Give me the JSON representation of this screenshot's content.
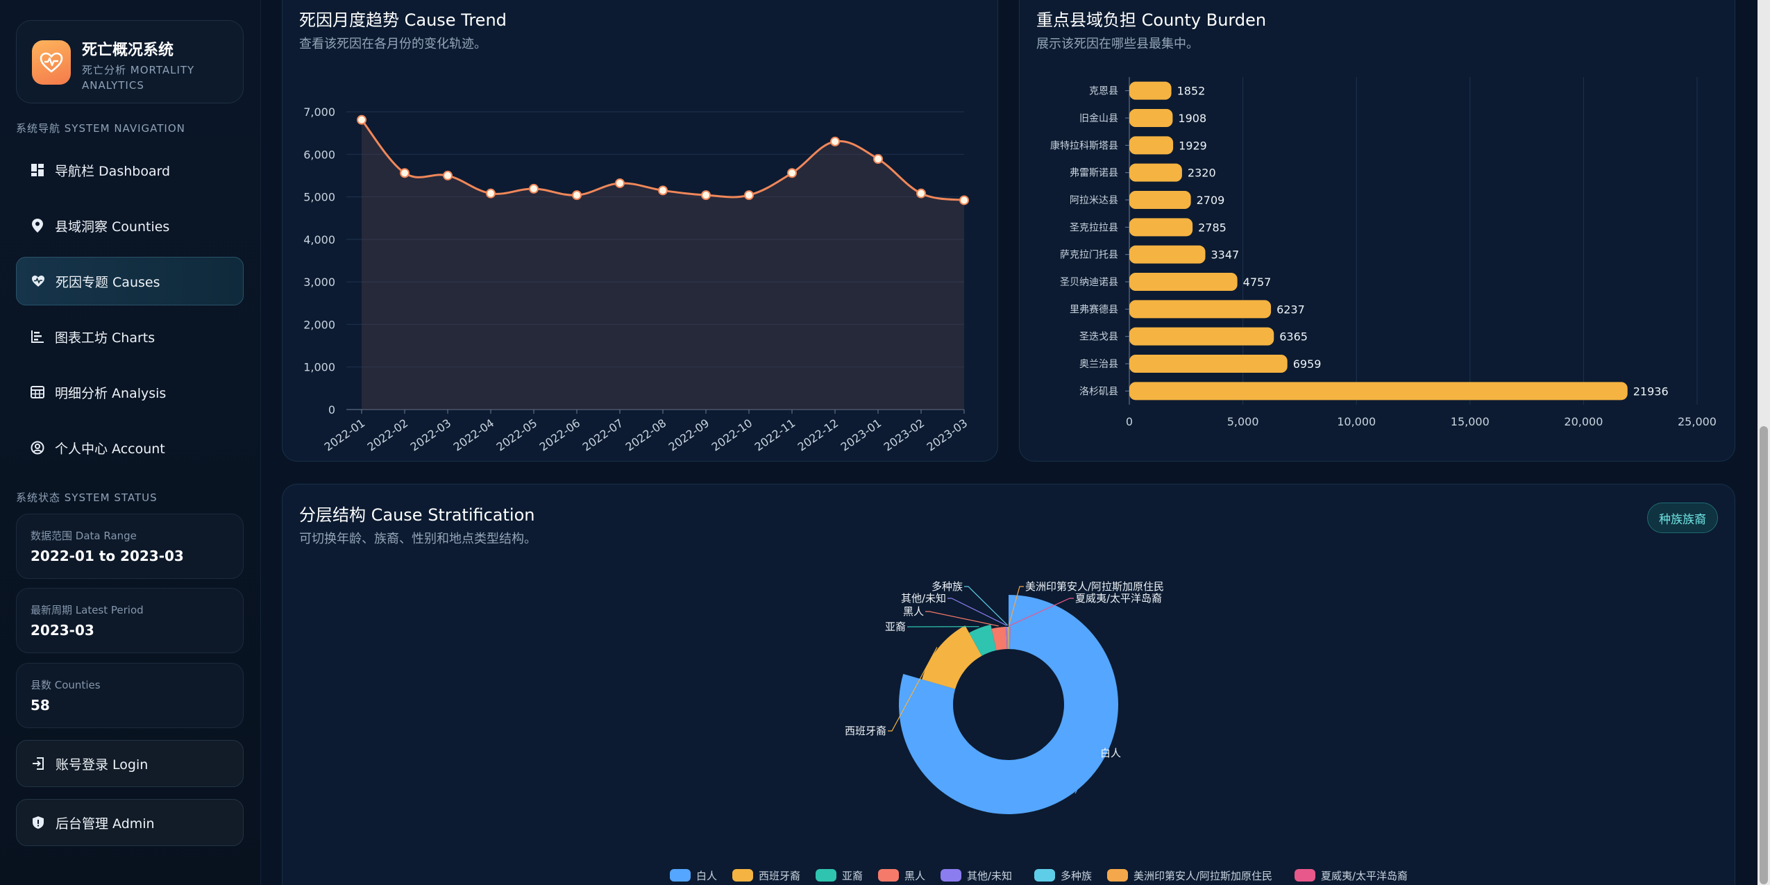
{
  "brand": {
    "title": "死亡概况系统",
    "subtitle": "死亡分析 MORTALITY ANALYTICS"
  },
  "sidebar": {
    "nav_section_label": "系统导航 SYSTEM NAVIGATION",
    "nav_items": [
      {
        "label": "导航栏 Dashboard",
        "icon": "dashboard-icon",
        "active": false
      },
      {
        "label": "县域洞察 Counties",
        "icon": "location-pin-icon",
        "active": false
      },
      {
        "label": "死因专题 Causes",
        "icon": "heartbeat-icon",
        "active": true
      },
      {
        "label": "图表工坊 Charts",
        "icon": "bar-chart-icon",
        "active": false
      },
      {
        "label": "明细分析 Analysis",
        "icon": "table-icon",
        "active": false
      },
      {
        "label": "个人中心 Account",
        "icon": "user-circle-icon",
        "active": false
      }
    ],
    "status_section_label": "系统状态 SYSTEM STATUS",
    "status_cards": [
      {
        "label": "数据范围 Data Range",
        "value": "2022-01 to 2023-03"
      },
      {
        "label": "最新周期 Latest Period",
        "value": "2023-03"
      },
      {
        "label": "县数 Counties",
        "value": "58"
      }
    ],
    "login_label": "账号登录 Login",
    "admin_label": "后台管理 Admin"
  },
  "trend_panel": {
    "title": "死因月度趋势 Cause Trend",
    "subtitle": "查看该死因在各月份的变化轨迹。"
  },
  "county_panel": {
    "title": "重点县域负担 County Burden",
    "subtitle": "展示该死因在哪些县最集中。"
  },
  "strat_panel": {
    "title": "分层结构 Cause Stratification",
    "subtitle": "可切换年龄、族裔、性别和地点类型结构。",
    "tag": "种族族裔"
  },
  "colors": {
    "line": "#f0875a",
    "bar": "#f5b342",
    "accent": "#6fe3e3"
  },
  "chart_data": [
    {
      "type": "line",
      "x": [
        "2022-01",
        "2022-02",
        "2022-03",
        "2022-04",
        "2022-05",
        "2022-06",
        "2022-07",
        "2022-08",
        "2022-09",
        "2022-10",
        "2022-11",
        "2022-12",
        "2023-01",
        "2023-02",
        "2023-03"
      ],
      "values": [
        6810,
        5560,
        5500,
        5080,
        5190,
        5040,
        5320,
        5150,
        5040,
        5040,
        5560,
        6300,
        5890,
        5080,
        4920
      ],
      "ylim": [
        0,
        7000
      ],
      "yticks": [
        "0",
        "1,000",
        "2,000",
        "3,000",
        "4,000",
        "5,000",
        "6,000",
        "7,000"
      ]
    },
    {
      "type": "bar",
      "orientation": "horizontal",
      "categories": [
        "克恩县",
        "旧金山县",
        "康特拉科斯塔县",
        "弗雷斯诺县",
        "阿拉米达县",
        "圣克拉拉县",
        "萨克拉门托县",
        "圣贝纳迪诺县",
        "里弗赛德县",
        "圣迭戈县",
        "奥兰治县",
        "洛杉矶县"
      ],
      "values": [
        1852,
        1908,
        1929,
        2320,
        2709,
        2785,
        3347,
        4757,
        6237,
        6365,
        6959,
        21936
      ],
      "value_labels": [
        "1852",
        "1908",
        "1929",
        "2320",
        "2709",
        "2785",
        "3347",
        "4757",
        "6237",
        "6365",
        "6959",
        "21936"
      ],
      "xlim": [
        0,
        25000
      ],
      "xticks": [
        "0",
        "5,000",
        "10,000",
        "15,000",
        "20,000",
        "25,000"
      ]
    },
    {
      "type": "pie",
      "donut": true,
      "categories": [
        "白人",
        "西班牙裔",
        "亚裔",
        "黑人",
        "其他/未知",
        "多种族",
        "美洲印第安人/阿拉斯加原住民",
        "夏威夷/太平洋岛裔"
      ],
      "values": [
        79.5,
        12.5,
        4.5,
        3.0,
        0.2,
        0.1,
        0.1,
        0.1
      ],
      "colors": [
        "#54a6ff",
        "#f5b342",
        "#2ec4b0",
        "#f57a6a",
        "#8b7cf0",
        "#5ecde8",
        "#f5a84b",
        "#e8588a"
      ],
      "legend": "bottom"
    }
  ]
}
